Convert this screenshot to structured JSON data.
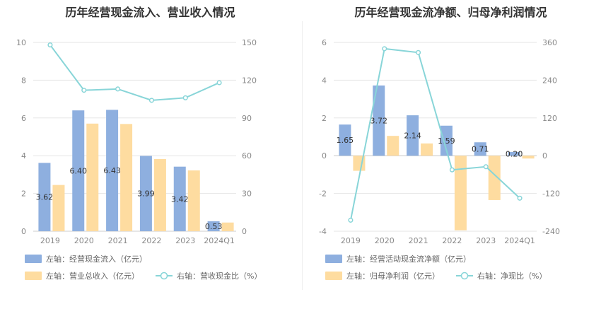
{
  "charts": [
    {
      "title": "历年经营现金流入、营业收入情况",
      "legend": [
        {
          "label": "左轴：经营现金流入（亿元）",
          "kind": "bar",
          "color": "#8eafdf"
        },
        {
          "label": "左轴：营业总收入（亿元）",
          "kind": "bar",
          "color": "#fedca0"
        },
        {
          "label": "右轴：营收现金比（%）",
          "kind": "line",
          "color": "#88d5d8"
        }
      ]
    },
    {
      "title": "历年经营现金流净额、归母净利润情况",
      "legend": [
        {
          "label": "左轴：经营活动现金流净额（亿元）",
          "kind": "bar",
          "color": "#8eafdf"
        },
        {
          "label": "左轴：归母净利润（亿元）",
          "kind": "bar",
          "color": "#fedca0"
        },
        {
          "label": "右轴：净现比（%）",
          "kind": "line",
          "color": "#88d5d8"
        }
      ]
    }
  ],
  "chart_data": [
    {
      "type": "bar",
      "title": "历年经营现金流入、营业收入情况",
      "categories": [
        "2019",
        "2020",
        "2021",
        "2022",
        "2023",
        "2024Q1"
      ],
      "series": [
        {
          "name": "左轴：经营现金流入（亿元）",
          "axis": "left",
          "type": "bar",
          "color": "#8eafdf",
          "values": [
            3.62,
            6.4,
            6.43,
            3.99,
            3.42,
            0.53
          ],
          "labels": [
            "3.62",
            "6.40",
            "6.43",
            "3.99",
            "3.42",
            "0.53"
          ]
        },
        {
          "name": "左轴：营业总收入（亿元）",
          "axis": "left",
          "type": "bar",
          "color": "#fedca0",
          "values": [
            2.45,
            5.7,
            5.68,
            3.82,
            3.22,
            0.46
          ]
        },
        {
          "name": "右轴：营收现金比（%）",
          "axis": "right",
          "type": "line",
          "color": "#88d5d8",
          "values": [
            148,
            112,
            113,
            104,
            106,
            118
          ]
        }
      ],
      "left_axis": {
        "min": 0,
        "max": 10,
        "ticks": [
          "0",
          "2",
          "4",
          "6",
          "8",
          "10"
        ]
      },
      "right_axis": {
        "min": 0,
        "max": 150,
        "ticks": [
          "0",
          "30",
          "60",
          "90",
          "120",
          "150"
        ]
      },
      "grid": true,
      "legend_position": "bottom-left"
    },
    {
      "type": "bar",
      "title": "历年经营现金流净额、归母净利润情况",
      "categories": [
        "2019",
        "2020",
        "2021",
        "2022",
        "2023",
        "2024Q1"
      ],
      "series": [
        {
          "name": "左轴：经营活动现金流净额（亿元）",
          "axis": "left",
          "type": "bar",
          "color": "#8eafdf",
          "values": [
            1.65,
            3.72,
            2.14,
            1.59,
            0.71,
            0.2
          ],
          "labels": [
            "1.65",
            "3.72",
            "2.14",
            "1.59",
            "0.71",
            "0.20"
          ]
        },
        {
          "name": "左轴：归母净利润（亿元）",
          "axis": "left",
          "type": "bar",
          "color": "#fedca0",
          "values": [
            -0.8,
            1.05,
            0.65,
            -3.95,
            -2.35,
            -0.15
          ]
        },
        {
          "name": "右轴：净现比（%）",
          "axis": "right",
          "type": "line",
          "color": "#88d5d8",
          "values": [
            -205,
            340,
            328,
            -45,
            -35,
            -135
          ]
        }
      ],
      "left_axis": {
        "min": -4,
        "max": 6,
        "ticks": [
          "-4",
          "-2",
          "0",
          "2",
          "4",
          "6"
        ]
      },
      "right_axis": {
        "min": -240,
        "max": 360,
        "ticks": [
          "-240",
          "-120",
          "0",
          "120",
          "240",
          "360"
        ]
      },
      "grid": true,
      "legend_position": "bottom-left"
    }
  ]
}
